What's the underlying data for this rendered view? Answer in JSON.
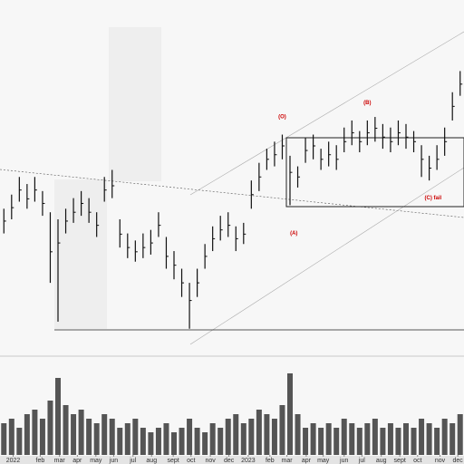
{
  "chart_data": {
    "type": "hlc",
    "x": [
      0,
      1,
      2,
      3,
      4,
      5,
      6,
      7,
      8,
      9,
      10,
      11,
      12,
      13,
      14,
      15,
      16,
      17,
      18,
      19,
      20,
      21,
      22,
      23,
      24,
      25,
      26,
      27,
      28,
      29,
      30,
      31,
      32,
      33,
      34,
      35,
      36,
      37,
      38,
      39,
      40,
      41,
      42,
      43,
      44,
      45,
      46,
      47,
      48,
      49,
      50,
      51,
      52,
      53,
      54,
      55,
      56,
      57,
      58,
      59
    ],
    "high": [
      41,
      45,
      50,
      48,
      50,
      46,
      40,
      38,
      41,
      44,
      46,
      44,
      40,
      50,
      52,
      38,
      34,
      32,
      34,
      35,
      40,
      33,
      29,
      24,
      20,
      24,
      31,
      36,
      39,
      40,
      36,
      37,
      49,
      54,
      58,
      60,
      62,
      56,
      53,
      61,
      62,
      58,
      60,
      59,
      64,
      66,
      63,
      66,
      67,
      65,
      64,
      66,
      65,
      63,
      59,
      56,
      59,
      64,
      74,
      80
    ],
    "low": [
      34,
      38,
      43,
      41,
      43,
      39,
      20,
      9,
      34,
      37,
      39,
      37,
      33,
      43,
      44,
      30,
      27,
      26,
      27,
      28,
      33,
      24,
      21,
      16,
      7,
      16,
      24,
      29,
      32,
      33,
      29,
      31,
      41,
      46,
      52,
      53,
      55,
      42,
      47,
      54,
      55,
      52,
      53,
      52,
      57,
      59,
      57,
      59,
      60,
      58,
      57,
      59,
      58,
      57,
      50,
      49,
      52,
      56,
      66,
      73
    ],
    "close": [
      37.5,
      41.3,
      46.3,
      43.8,
      46.3,
      42.5,
      28.8,
      31.3,
      37.5,
      40,
      42.5,
      40,
      36.3,
      46.3,
      47.5,
      33.8,
      30,
      28.8,
      30,
      31.3,
      36.3,
      27.5,
      25,
      20,
      15,
      20,
      27.5,
      32.5,
      35,
      36.3,
      32.5,
      33.8,
      45,
      50,
      55,
      56.3,
      58.8,
      51.3,
      50,
      57.5,
      58.8,
      55,
      56.3,
      55,
      60,
      62.5,
      60,
      62.5,
      63.8,
      61.3,
      60,
      62.5,
      61.3,
      60,
      55,
      52.5,
      55,
      60,
      70,
      76.3
    ],
    "volume": [
      35,
      40,
      30,
      45,
      50,
      40,
      60,
      85,
      55,
      45,
      50,
      40,
      35,
      45,
      40,
      30,
      35,
      40,
      30,
      25,
      30,
      35,
      25,
      30,
      40,
      30,
      25,
      35,
      30,
      40,
      45,
      35,
      40,
      50,
      45,
      40,
      55,
      90,
      45,
      30,
      35,
      30,
      35,
      30,
      40,
      35,
      30,
      35,
      40,
      30,
      35,
      30,
      35,
      30,
      40,
      35,
      30,
      40,
      35,
      45
    ],
    "color": "#111111",
    "volume_color": "#555555",
    "xlim": [
      -0.5,
      59.5
    ],
    "ylim": [
      0,
      95
    ],
    "volume_ylim": [
      0,
      100
    ],
    "xticks": [
      {
        "value": 1.2,
        "label": "2022"
      },
      {
        "value": 4.7,
        "label": "feb"
      },
      {
        "value": 7.2,
        "label": "mar"
      },
      {
        "value": 9.5,
        "label": "apr"
      },
      {
        "value": 11.9,
        "label": "may"
      },
      {
        "value": 14.2,
        "label": "jun"
      },
      {
        "value": 16.7,
        "label": "jul"
      },
      {
        "value": 19.1,
        "label": "aug"
      },
      {
        "value": 21.9,
        "label": "sept"
      },
      {
        "value": 24.2,
        "label": "oct"
      },
      {
        "value": 26.7,
        "label": "nov"
      },
      {
        "value": 29.1,
        "label": "dec"
      },
      {
        "value": 31.6,
        "label": "2023"
      },
      {
        "value": 34.4,
        "label": "feb"
      },
      {
        "value": 36.6,
        "label": "mar"
      },
      {
        "value": 39.1,
        "label": "apr"
      },
      {
        "value": 41.3,
        "label": "may"
      },
      {
        "value": 44,
        "label": "jun"
      },
      {
        "value": 46.3,
        "label": "jul"
      },
      {
        "value": 48.8,
        "label": "aug"
      },
      {
        "value": 51.2,
        "label": "sept"
      },
      {
        "value": 53.5,
        "label": "oct"
      },
      {
        "value": 56.4,
        "label": "nov"
      },
      {
        "value": 58.7,
        "label": "dec"
      }
    ],
    "annotations": [
      {
        "text": "(O)",
        "x": 36,
        "y": 67
      },
      {
        "text": "(B)",
        "x": 47,
        "y": 71
      },
      {
        "text": "(A)",
        "x": 37.5,
        "y": 34
      },
      {
        "text": "(C) fail",
        "x": 55.5,
        "y": 44
      }
    ]
  }
}
